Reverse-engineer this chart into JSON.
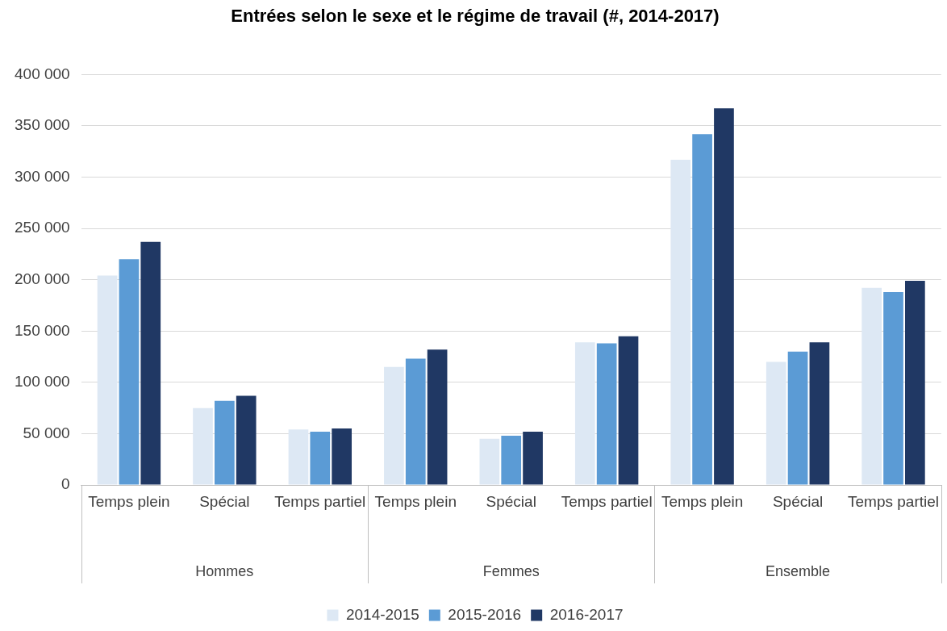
{
  "chart_data": {
    "type": "bar",
    "title": "Entrées selon le sexe et le régime de travail (#, 2014-2017)",
    "categories": [
      "Temps plein",
      "Spécial",
      "Temps partiel",
      "Temps plein",
      "Spécial",
      "Temps partiel",
      "Temps plein",
      "Spécial",
      "Temps partiel"
    ],
    "annotations": [
      "Hommes",
      "Femmes",
      "Ensemble"
    ],
    "series": [
      {
        "name": "2014-2015",
        "color": "#dde8f4",
        "values": [
          204000,
          75000,
          54000,
          115000,
          45000,
          139000,
          317000,
          120000,
          192000
        ]
      },
      {
        "name": "2015-2016",
        "color": "#5b9bd5",
        "values": [
          220000,
          82000,
          52000,
          123000,
          48000,
          138000,
          342000,
          130000,
          188000
        ]
      },
      {
        "name": "2016-2017",
        "color": "#203864",
        "values": [
          237000,
          87000,
          55000,
          132000,
          52000,
          145000,
          367000,
          139000,
          199000
        ]
      }
    ],
    "ylim": [
      0,
      400000
    ],
    "yticks": [
      {
        "value": 0,
        "label": "0"
      },
      {
        "value": 50000,
        "label": "50 000"
      },
      {
        "value": 100000,
        "label": "100 000"
      },
      {
        "value": 150000,
        "label": "150 000"
      },
      {
        "value": 200000,
        "label": "200 000"
      },
      {
        "value": 250000,
        "label": "250 000"
      },
      {
        "value": 300000,
        "label": "300 000"
      },
      {
        "value": 350000,
        "label": "350 000"
      },
      {
        "value": 400000,
        "label": "400 000"
      }
    ],
    "grid": true,
    "legend": "bottom"
  }
}
